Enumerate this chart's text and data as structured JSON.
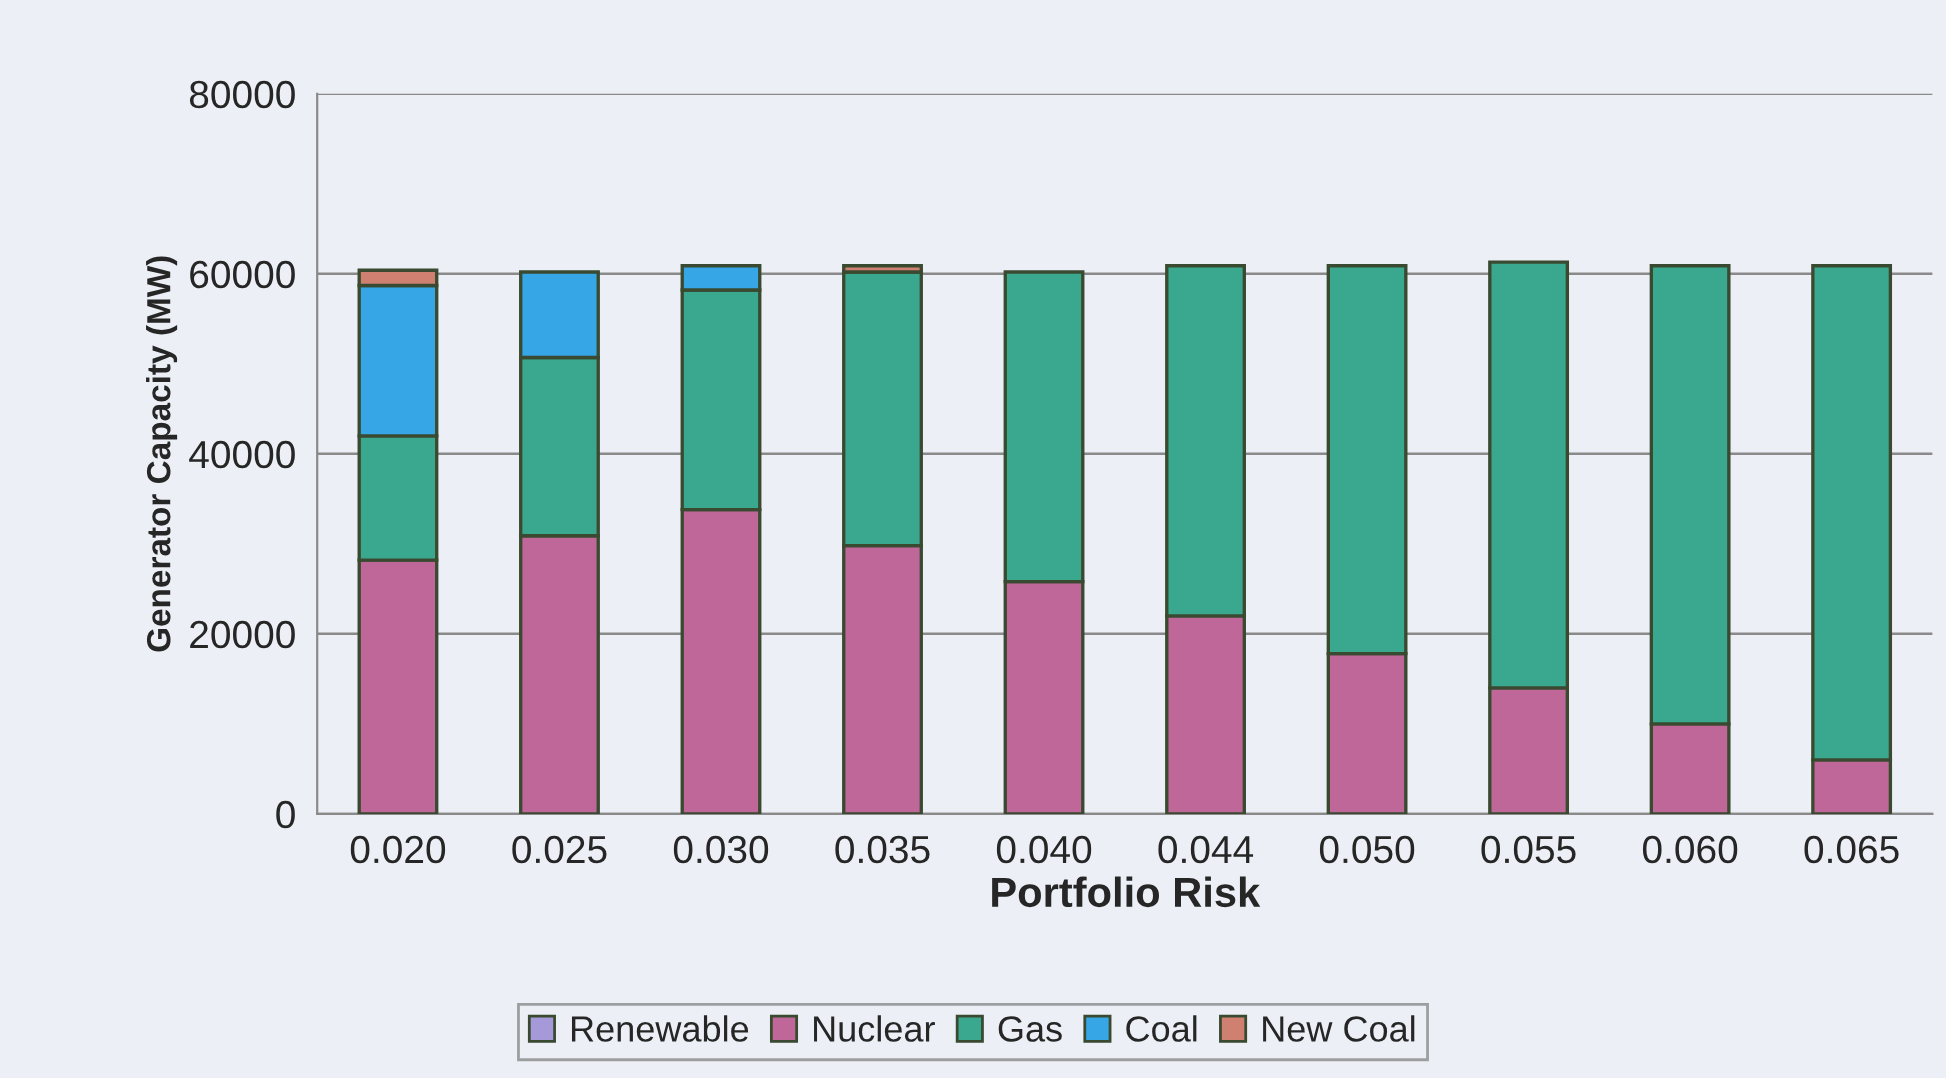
{
  "chart_data": {
    "type": "bar",
    "stacked": true,
    "xlabel": "Portfolio Risk",
    "ylabel": "Generator Capacity (MW)",
    "categories": [
      "0.020",
      "0.025",
      "0.030",
      "0.035",
      "0.040",
      "0.044",
      "0.050",
      "0.055",
      "0.060",
      "0.065"
    ],
    "series": [
      {
        "name": "Renewable",
        "color": "#a699d9",
        "values": [
          0,
          0,
          0,
          0,
          0,
          0,
          0,
          0,
          0,
          0
        ]
      },
      {
        "name": "Nuclear",
        "color": "#c0679a",
        "values": [
          28200,
          30900,
          33800,
          29800,
          25800,
          22000,
          17800,
          14000,
          10000,
          6000
        ]
      },
      {
        "name": "Gas",
        "color": "#3aa88e",
        "values": [
          13800,
          19800,
          24400,
          30400,
          34400,
          38900,
          43100,
          47300,
          50900,
          54900
        ]
      },
      {
        "name": "Coal",
        "color": "#36a6e6",
        "values": [
          16700,
          9500,
          2700,
          0,
          0,
          0,
          0,
          0,
          0,
          0
        ]
      },
      {
        "name": "New Coal",
        "color": "#d08070",
        "values": [
          1700,
          0,
          0,
          700,
          0,
          0,
          0,
          0,
          0,
          0
        ]
      }
    ],
    "ylim": [
      0,
      80000
    ],
    "yticks": [
      0,
      20000,
      40000,
      60000,
      80000
    ],
    "grid": "y",
    "legend": "bottom"
  }
}
